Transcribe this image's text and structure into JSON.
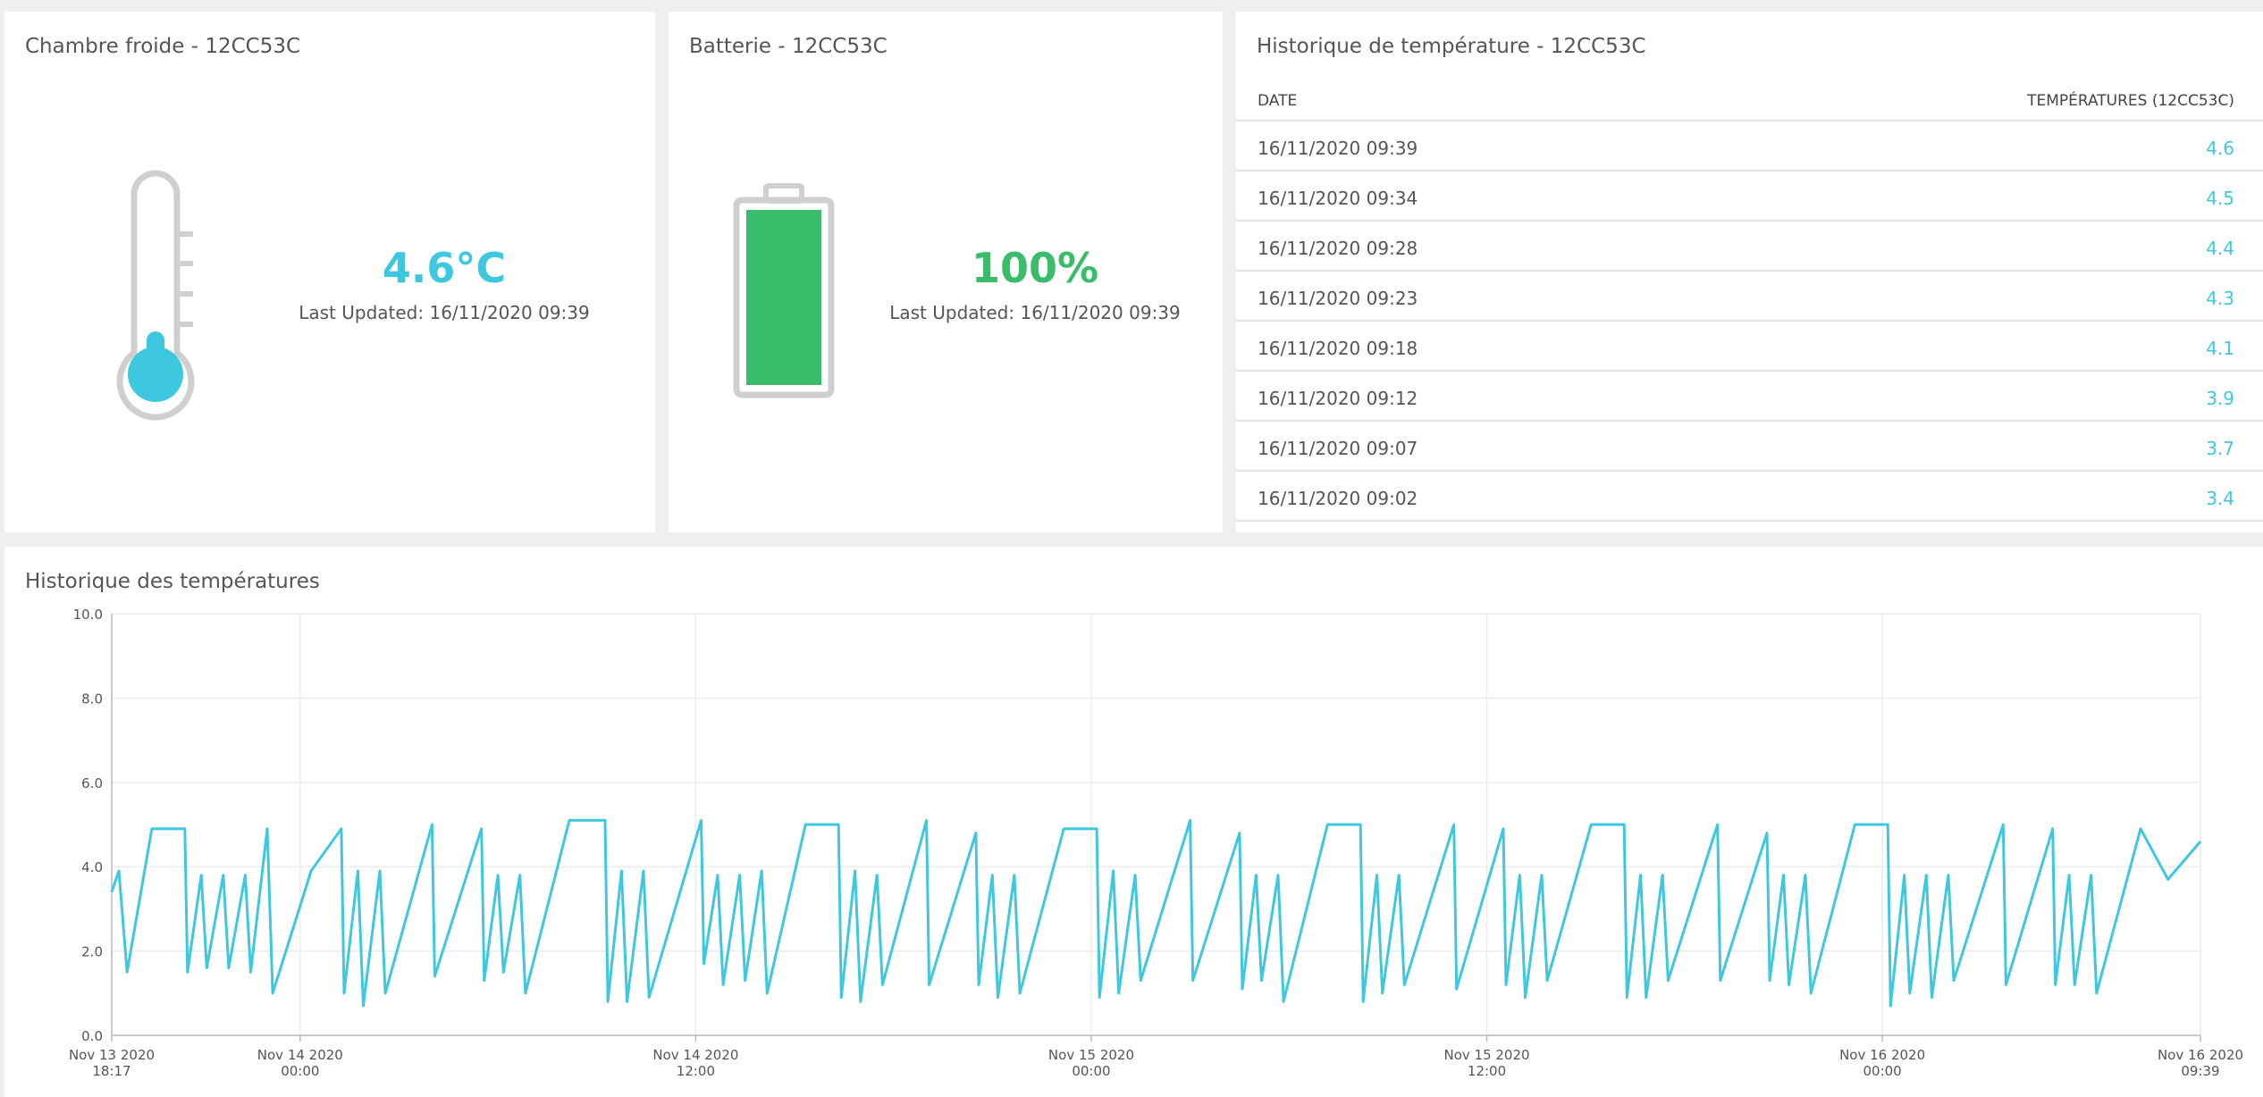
{
  "chambre": {
    "title": "Chambre froide - 12CC53C",
    "value": "4.6°C",
    "updated": "Last Updated: 16/11/2020 09:39",
    "color": "#3ec8e0"
  },
  "batterie": {
    "title": "Batterie - 12CC53C",
    "value": "100%",
    "updated": "Last Updated: 16/11/2020 09:39",
    "color": "#3abd6b",
    "level": 1.0
  },
  "historique": {
    "title": "Historique de température - 12CC53C",
    "col_date": "DATE",
    "col_temp": "TEMPÉRATURES (12CC53C)",
    "rows": [
      {
        "date": "16/11/2020 09:39",
        "value": "4.6"
      },
      {
        "date": "16/11/2020 09:34",
        "value": "4.5"
      },
      {
        "date": "16/11/2020 09:28",
        "value": "4.4"
      },
      {
        "date": "16/11/2020 09:23",
        "value": "4.3"
      },
      {
        "date": "16/11/2020 09:18",
        "value": "4.1"
      },
      {
        "date": "16/11/2020 09:12",
        "value": "3.9"
      },
      {
        "date": "16/11/2020 09:07",
        "value": "3.7"
      },
      {
        "date": "16/11/2020 09:02",
        "value": "3.4"
      }
    ]
  },
  "chart": {
    "title": "Historique des températures"
  },
  "chart_data": {
    "type": "line",
    "title": "Historique des températures",
    "xlabel": "",
    "ylabel": "",
    "ylim": [
      0,
      10
    ],
    "xlim": [
      "2020-11-13 18:17",
      "2020-11-16 09:39"
    ],
    "y_ticks": [
      "0.0",
      "2.0",
      "4.0",
      "6.0",
      "8.0",
      "10.0"
    ],
    "x_ticks": [
      {
        "t": "2020-11-13 18:17",
        "line1": "Nov 13 2020",
        "line2": "18:17"
      },
      {
        "t": "2020-11-14 00:00",
        "line1": "Nov 14 2020",
        "line2": "00:00"
      },
      {
        "t": "2020-11-14 12:00",
        "line1": "Nov 14 2020",
        "line2": "12:00"
      },
      {
        "t": "2020-11-15 00:00",
        "line1": "Nov 15 2020",
        "line2": "00:00"
      },
      {
        "t": "2020-11-15 12:00",
        "line1": "Nov 15 2020",
        "line2": "12:00"
      },
      {
        "t": "2020-11-16 00:00",
        "line1": "Nov 16 2020",
        "line2": "00:00"
      },
      {
        "t": "2020-11-16 09:39",
        "line1": "Nov 16 2020",
        "line2": "09:39"
      }
    ],
    "grid": true,
    "color": "#3ec8e0",
    "series": [
      {
        "x": [
          "2020-11-13 18:17",
          "2020-11-13 18:30",
          "2020-11-13 18:45",
          "2020-11-13 19:30",
          "2020-11-13 20:30",
          "2020-11-13 20:35",
          "2020-11-13 21:00",
          "2020-11-13 21:10",
          "2020-11-13 21:40",
          "2020-11-13 21:50",
          "2020-11-13 22:20",
          "2020-11-13 22:30",
          "2020-11-13 23:00",
          "2020-11-13 23:10",
          "2020-11-14 00:20",
          "2020-11-14 01:15",
          "2020-11-14 01:20",
          "2020-11-14 01:45",
          "2020-11-14 01:55",
          "2020-11-14 02:25",
          "2020-11-14 02:35",
          "2020-11-14 04:00",
          "2020-11-14 04:05",
          "2020-11-14 05:30",
          "2020-11-14 05:35",
          "2020-11-14 06:00",
          "2020-11-14 06:10",
          "2020-11-14 06:40",
          "2020-11-14 06:50",
          "2020-11-14 08:10",
          "2020-11-14 09:15",
          "2020-11-14 09:20",
          "2020-11-14 09:45",
          "2020-11-14 09:55",
          "2020-11-14 10:25",
          "2020-11-14 10:35",
          "2020-11-14 12:10",
          "2020-11-14 12:15",
          "2020-11-14 12:40",
          "2020-11-14 12:50",
          "2020-11-14 13:20",
          "2020-11-14 13:30",
          "2020-11-14 14:00",
          "2020-11-14 14:10",
          "2020-11-14 15:20",
          "2020-11-14 16:20",
          "2020-11-14 16:25",
          "2020-11-14 16:50",
          "2020-11-14 17:00",
          "2020-11-14 17:30",
          "2020-11-14 17:40",
          "2020-11-14 19:00",
          "2020-11-14 19:05",
          "2020-11-14 20:30",
          "2020-11-14 20:35",
          "2020-11-14 21:00",
          "2020-11-14 21:10",
          "2020-11-14 21:40",
          "2020-11-14 21:50",
          "2020-11-14 23:10",
          "2020-11-15 00:10",
          "2020-11-15 00:15",
          "2020-11-15 00:40",
          "2020-11-15 00:50",
          "2020-11-15 01:20",
          "2020-11-15 01:30",
          "2020-11-15 03:00",
          "2020-11-15 03:05",
          "2020-11-15 04:30",
          "2020-11-15 04:35",
          "2020-11-15 05:00",
          "2020-11-15 05:10",
          "2020-11-15 05:40",
          "2020-11-15 05:50",
          "2020-11-15 07:10",
          "2020-11-15 08:10",
          "2020-11-15 08:15",
          "2020-11-15 08:40",
          "2020-11-15 08:50",
          "2020-11-15 09:20",
          "2020-11-15 09:30",
          "2020-11-15 11:00",
          "2020-11-15 11:05",
          "2020-11-15 12:30",
          "2020-11-15 12:35",
          "2020-11-15 13:00",
          "2020-11-15 13:10",
          "2020-11-15 13:40",
          "2020-11-15 13:50",
          "2020-11-15 15:10",
          "2020-11-15 16:10",
          "2020-11-15 16:15",
          "2020-11-15 16:40",
          "2020-11-15 16:50",
          "2020-11-15 17:20",
          "2020-11-15 17:30",
          "2020-11-15 19:00",
          "2020-11-15 19:05",
          "2020-11-15 20:30",
          "2020-11-15 20:35",
          "2020-11-15 21:00",
          "2020-11-15 21:10",
          "2020-11-15 21:40",
          "2020-11-15 21:50",
          "2020-11-15 23:10",
          "2020-11-16 00:10",
          "2020-11-16 00:15",
          "2020-11-16 00:40",
          "2020-11-16 00:50",
          "2020-11-16 01:20",
          "2020-11-16 01:30",
          "2020-11-16 02:00",
          "2020-11-16 02:10",
          "2020-11-16 03:40",
          "2020-11-16 03:45",
          "2020-11-16 05:10",
          "2020-11-16 05:15",
          "2020-11-16 05:40",
          "2020-11-16 05:50",
          "2020-11-16 06:20",
          "2020-11-16 06:30",
          "2020-11-16 07:50",
          "2020-11-16 08:40",
          "2020-11-16 09:39"
        ],
        "y": [
          3.4,
          3.9,
          1.5,
          4.9,
          4.9,
          1.5,
          3.8,
          1.6,
          3.8,
          1.6,
          3.8,
          1.5,
          4.9,
          1.0,
          3.9,
          4.9,
          1.0,
          3.9,
          0.7,
          3.9,
          1.0,
          5.0,
          1.4,
          4.9,
          1.3,
          3.8,
          1.5,
          3.8,
          1.0,
          5.1,
          5.1,
          0.8,
          3.9,
          0.8,
          3.9,
          0.9,
          5.1,
          1.7,
          3.8,
          1.2,
          3.8,
          1.3,
          3.9,
          1.0,
          5.0,
          5.0,
          0.9,
          3.9,
          0.8,
          3.8,
          1.2,
          5.1,
          1.2,
          4.8,
          1.2,
          3.8,
          0.9,
          3.8,
          1.0,
          4.9,
          4.9,
          0.9,
          3.9,
          1.0,
          3.8,
          1.3,
          5.1,
          1.3,
          4.8,
          1.1,
          3.8,
          1.3,
          3.8,
          0.8,
          5.0,
          5.0,
          0.8,
          3.8,
          1.0,
          3.8,
          1.2,
          5.0,
          1.1,
          4.9,
          1.2,
          3.8,
          0.9,
          3.8,
          1.3,
          5.0,
          5.0,
          0.9,
          3.8,
          0.9,
          3.8,
          1.3,
          5.0,
          1.3,
          4.8,
          1.3,
          3.8,
          1.2,
          3.8,
          1.0,
          5.0,
          5.0,
          0.7,
          3.8,
          1.0,
          3.8,
          0.9,
          3.8,
          1.3,
          5.0,
          1.2,
          4.9,
          1.2,
          3.8,
          1.2,
          3.8,
          1.0,
          4.9,
          3.7,
          4.6
        ]
      }
    ]
  }
}
